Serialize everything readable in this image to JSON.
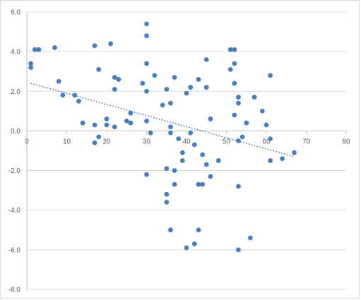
{
  "chart_data": {
    "type": "scatter",
    "title": "",
    "xlabel": "",
    "ylabel": "",
    "xlim": [
      0,
      80
    ],
    "ylim": [
      -8,
      6
    ],
    "x_ticks": [
      0,
      10,
      20,
      30,
      40,
      50,
      60,
      70,
      80
    ],
    "y_ticks": [
      6,
      4,
      2,
      0,
      -2,
      -4,
      -6,
      -8
    ],
    "x_tick_labels": [
      "0",
      "10",
      "20",
      "30",
      "40",
      "50",
      "60",
      "70",
      "80"
    ],
    "y_tick_labels": [
      "6.0",
      "4.0",
      "2.0",
      "0.0",
      "-2.0",
      "-4.0",
      "-6.0",
      "-8.0"
    ],
    "grid": "horizontal",
    "legend": "none",
    "marker_color": "#4a7ebb",
    "trendline": {
      "type": "linear",
      "style": "dotted",
      "color": "#2f5597",
      "x": [
        1,
        67
      ],
      "y": [
        2.4,
        -1.3
      ]
    },
    "series": [
      {
        "x": [
          1,
          1,
          2,
          3,
          7,
          8,
          9,
          12,
          13,
          14,
          17,
          17,
          17,
          18,
          18,
          20,
          20,
          21,
          22,
          22,
          22,
          23,
          25,
          26,
          26,
          29,
          30,
          30,
          30,
          30,
          30,
          30,
          31,
          32,
          34,
          35,
          35,
          35,
          35,
          36,
          36,
          36,
          36,
          37,
          37,
          37,
          38,
          39,
          39,
          40,
          40,
          41,
          41,
          42,
          42,
          43,
          43,
          43,
          44,
          44,
          45,
          45,
          45,
          46,
          46,
          48,
          51,
          51,
          52,
          52,
          52,
          52,
          53,
          53,
          53,
          53,
          53,
          54,
          55,
          56,
          57,
          59,
          60,
          61,
          61,
          61,
          64,
          67
        ],
        "y": [
          3.4,
          3.2,
          4.1,
          4.1,
          4.2,
          2.5,
          1.8,
          1.8,
          1.5,
          0.4,
          4.3,
          0.3,
          -0.6,
          3.1,
          -0.3,
          0.6,
          0.3,
          4.4,
          2.7,
          2.1,
          0.2,
          2.6,
          0.5,
          0.9,
          0.4,
          2.4,
          5.4,
          4.8,
          3.4,
          2.0,
          0.5,
          -2.2,
          -0.1,
          2.8,
          1.3,
          2.1,
          -1.9,
          -3.2,
          -3.6,
          1.4,
          0.2,
          -0.1,
          -5.0,
          2.7,
          -2.0,
          -2.7,
          -0.4,
          -1.1,
          -1.5,
          1.9,
          -5.9,
          2.2,
          -0.1,
          -0.7,
          -5.7,
          2.6,
          -2.7,
          -5.0,
          -1.2,
          -2.7,
          3.6,
          2.2,
          -1.7,
          0.6,
          -2.3,
          -1.5,
          4.1,
          3.1,
          4.1,
          3.4,
          2.4,
          0.8,
          1.7,
          1.4,
          -0.5,
          -2.8,
          -6.0,
          -0.3,
          0.4,
          -5.4,
          1.7,
          1.0,
          0.3,
          2.8,
          -0.4,
          -1.5,
          -1.4,
          -1.1
        ]
      }
    ]
  }
}
